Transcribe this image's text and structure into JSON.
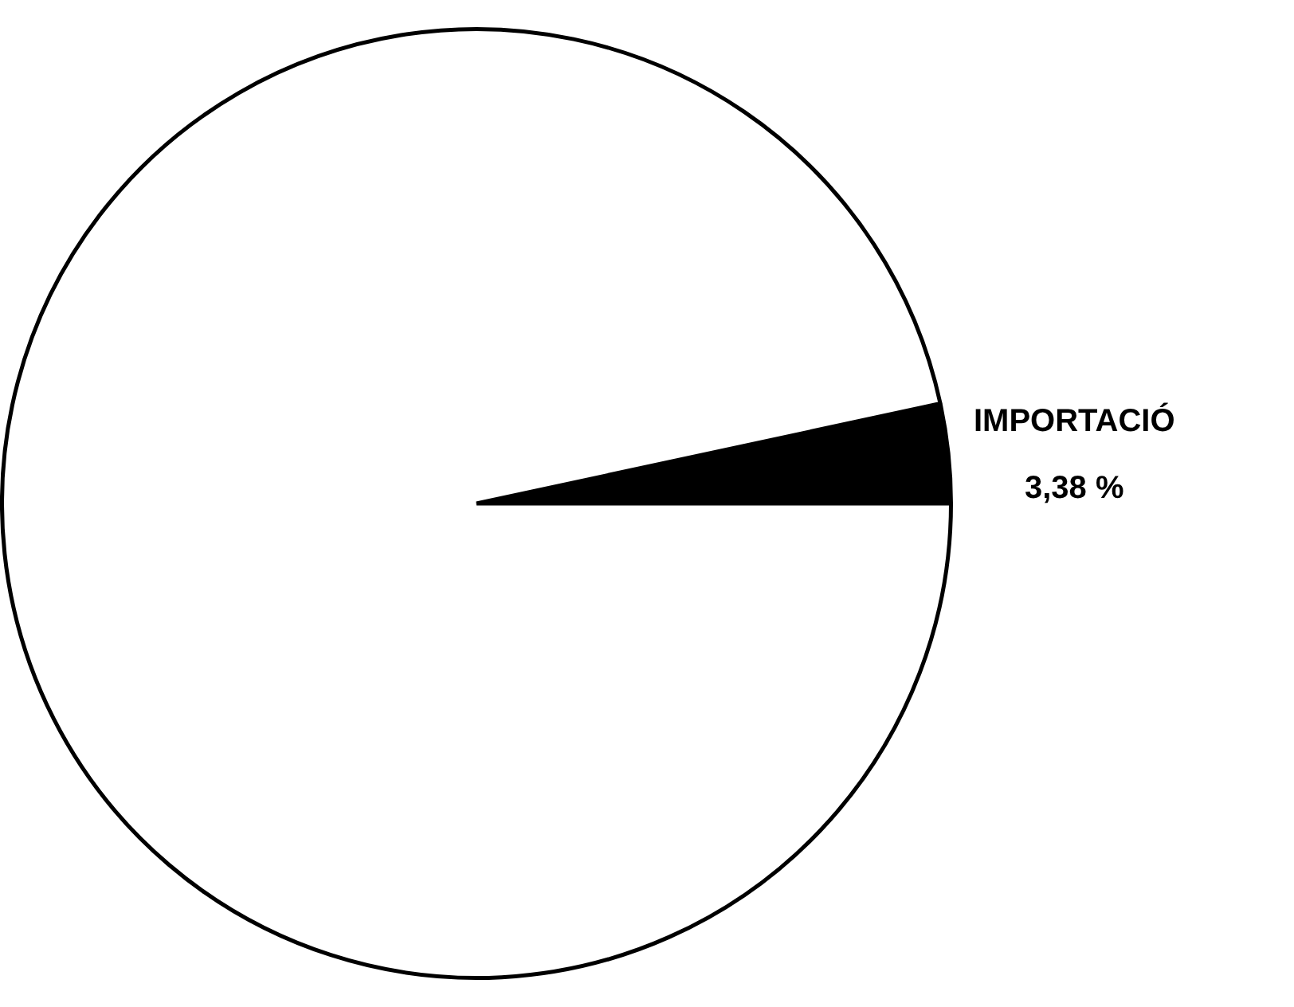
{
  "chart_data": {
    "type": "pie",
    "categories": [
      "IMPORTACIÓ",
      null
    ],
    "values": [
      3.38,
      96.62
    ],
    "colors": [
      "#000000",
      "#ffffff"
    ],
    "value_labels": [
      "3,38 %",
      null
    ],
    "legend": false
  }
}
